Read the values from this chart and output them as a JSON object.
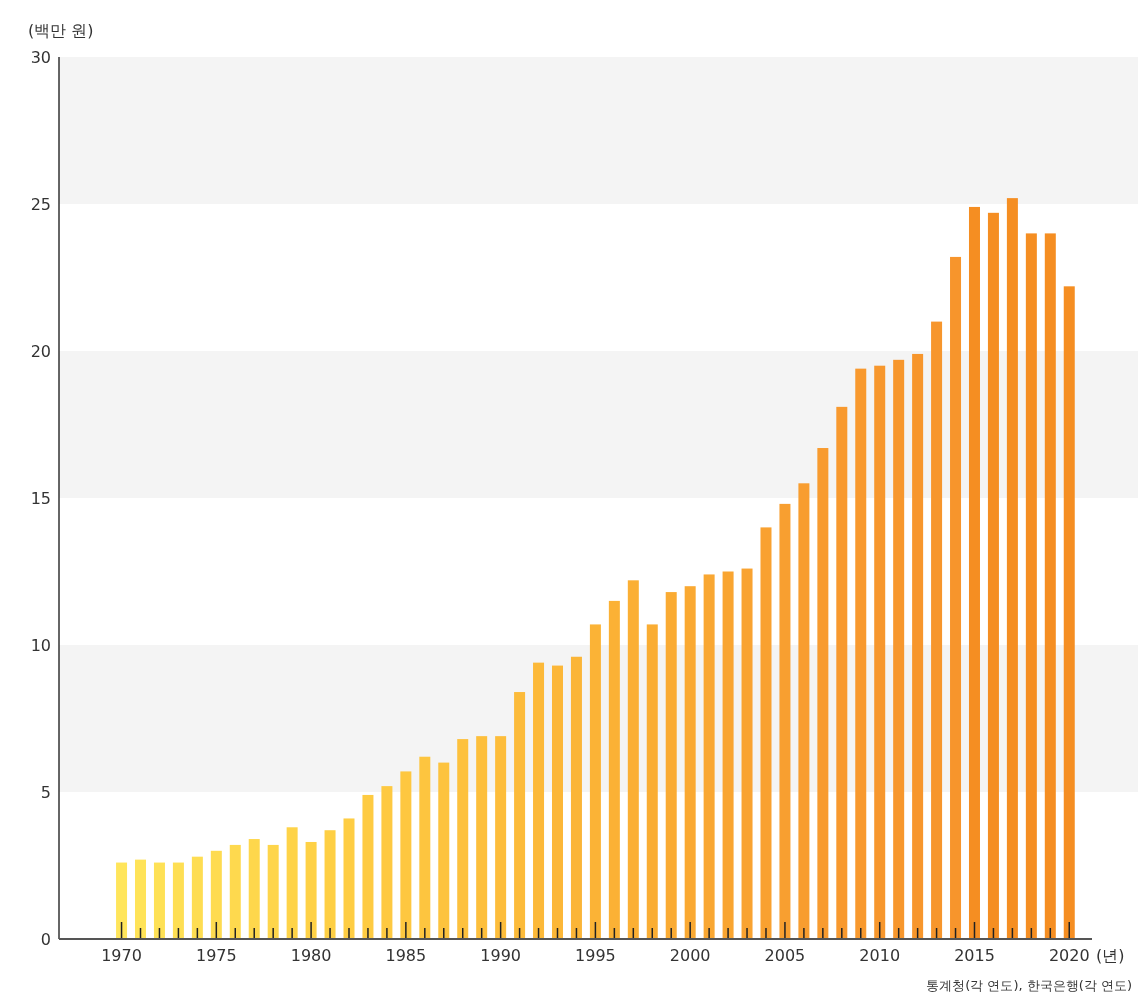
{
  "chart_data": {
    "type": "bar",
    "ylabel": "(백만 원)",
    "xlabel": "(년)",
    "annotations": [
      "통계청(각 연도), 한국은행(각 연도)"
    ],
    "categories": [
      "1970",
      null,
      null,
      null,
      null,
      "1975",
      null,
      null,
      null,
      null,
      "1980",
      null,
      null,
      null,
      null,
      "1985",
      null,
      null,
      null,
      null,
      "1990",
      null,
      null,
      null,
      null,
      "1995",
      null,
      null,
      null,
      null,
      "2000",
      null,
      null,
      null,
      null,
      "2005",
      null,
      null,
      null,
      null,
      "2010",
      null,
      null,
      null,
      null,
      "2015",
      null,
      null,
      null,
      null,
      "2020"
    ],
    "values": [
      2.6,
      2.7,
      2.6,
      2.6,
      2.8,
      3.0,
      3.2,
      3.4,
      3.2,
      3.8,
      3.3,
      3.7,
      4.1,
      4.9,
      5.2,
      5.7,
      6.2,
      6.0,
      6.8,
      6.9,
      6.9,
      8.4,
      9.4,
      9.3,
      9.6,
      10.7,
      11.5,
      12.2,
      10.7,
      11.8,
      12.0,
      12.4,
      12.5,
      12.6,
      14.0,
      14.8,
      15.5,
      16.7,
      18.1,
      19.4,
      19.5,
      19.7,
      19.9,
      21.0,
      23.2,
      24.9,
      24.7,
      25.2,
      24.0,
      24.0,
      22.2
    ],
    "colors": [
      "#ffe55b",
      "#ffe358",
      "#fee156",
      "#fedf54",
      "#fedd52",
      "#fedb50",
      "#fed94e",
      "#fed74c",
      "#fed54a",
      "#fed348",
      "#fed146",
      "#fecf44",
      "#fecd43",
      "#fecb42",
      "#fec941",
      "#fec740",
      "#fdc53f",
      "#fdc33e",
      "#fdc13d",
      "#fdbf3c",
      "#fdbd3b",
      "#fcbb3a",
      "#fcb939",
      "#fcb738",
      "#fbb537",
      "#fbb336",
      "#fbb135",
      "#fbaf34",
      "#faad33",
      "#faab33",
      "#faa932",
      "#f9a732",
      "#f9a531",
      "#f9a331",
      "#f9a130",
      "#f89f30",
      "#f89d2f",
      "#f89b2f",
      "#f8992e",
      "#f8992e",
      "#f7972d",
      "#f7972d",
      "#f7962c",
      "#f7962c",
      "#f7952c",
      "#f58e22",
      "#f58e22",
      "#f58e22",
      "#f58e22",
      "#f58e22",
      "#f58e22"
    ],
    "ylim": [
      0,
      30
    ],
    "yticks": [
      0,
      5,
      10,
      15,
      20,
      25,
      30
    ],
    "bands": [
      {
        "axis": "y",
        "from": 25,
        "to": 30,
        "color": "#f4f4f4"
      },
      {
        "axis": "y",
        "from": 15,
        "to": 20,
        "color": "#f4f4f4"
      },
      {
        "axis": "y",
        "from": 5,
        "to": 10,
        "color": "#f4f4f4"
      }
    ]
  }
}
